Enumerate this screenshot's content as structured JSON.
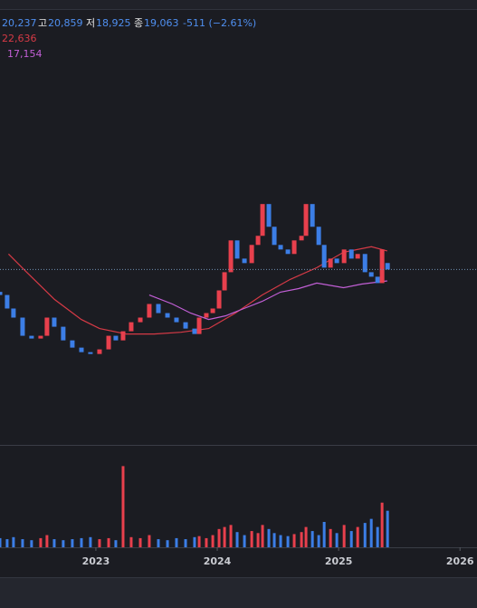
{
  "chart_data": {
    "type": "candlestick",
    "header": {
      "open": "20,237",
      "high_label": "고",
      "high": "20,859",
      "low_label": "저",
      "low": "18,925",
      "close_label": "종",
      "close": "19,063",
      "change": "-511 (−2.61%)"
    },
    "x": [
      2022.21,
      2022.269,
      2022.321,
      2022.396,
      2022.47,
      2022.545,
      2022.597,
      2022.657,
      2022.731,
      2022.806,
      2022.881,
      2022.955,
      2023.03,
      2023.105,
      2023.164,
      2023.224,
      2023.291,
      2023.366,
      2023.44,
      2023.515,
      2023.59,
      2023.664,
      2023.739,
      2023.813,
      2023.851,
      2023.91,
      2023.963,
      2024.015,
      2024.06,
      2024.112,
      2024.164,
      2024.224,
      2024.284,
      2024.336,
      2024.373,
      2024.425,
      2024.47,
      2024.522,
      2024.582,
      2024.634,
      2024.694,
      2024.731,
      2024.784,
      2024.836,
      2024.881,
      2024.933,
      2024.985,
      2025.045,
      2025.105,
      2025.157,
      2025.217,
      2025.269,
      2025.321,
      2025.358,
      2025.403
    ],
    "open": [
      15500,
      15060,
      13290,
      12220,
      10330,
      10070,
      10330,
      12220,
      11230,
      9900,
      9260,
      8880,
      8730,
      9110,
      10330,
      9900,
      10770,
      11710,
      12220,
      13860,
      12740,
      12220,
      11710,
      11040,
      10500,
      12220,
      12740,
      13290,
      15710,
      18590,
      24940,
      21080,
      20220,
      23920,
      26020,
      34900,
      28290,
      23920,
      22930,
      22000,
      24940,
      26020,
      34900,
      28290,
      23920,
      19390,
      21080,
      20220,
      22930,
      21080,
      22000,
      18590,
      17830,
      16810,
      20237
    ],
    "close": [
      15060,
      13290,
      12220,
      10330,
      10070,
      10330,
      12220,
      11230,
      9900,
      9260,
      8880,
      8730,
      9110,
      10330,
      9900,
      10770,
      11710,
      12220,
      13860,
      12740,
      12220,
      11710,
      11040,
      10500,
      12220,
      12740,
      13290,
      15710,
      18590,
      24940,
      21080,
      20220,
      23920,
      26020,
      34900,
      28290,
      23920,
      22930,
      22000,
      24940,
      26020,
      34900,
      28290,
      23920,
      19390,
      21080,
      20220,
      22930,
      21080,
      22000,
      18590,
      17830,
      16810,
      22930,
      19063
    ],
    "volume": [
      9,
      8,
      10,
      8,
      7,
      9,
      12,
      8,
      7,
      8,
      9,
      10,
      8,
      9,
      7,
      80,
      10,
      9,
      12,
      8,
      7,
      9,
      8,
      10,
      11,
      9,
      12,
      18,
      20,
      22,
      15,
      12,
      16,
      14,
      22,
      18,
      14,
      12,
      11,
      13,
      15,
      20,
      16,
      12,
      25,
      18,
      14,
      22,
      16,
      20,
      24,
      28,
      20,
      44,
      36
    ],
    "up_color": "#e8404d",
    "down_color": "#3c7ee6",
    "ma_lines": [
      {
        "color": "#d63a46",
        "label": "22,636",
        "x": [
          2022.28,
          2022.43,
          2022.66,
          2022.88,
          2023.03,
          2023.25,
          2023.48,
          2023.7,
          2023.93,
          2024.15,
          2024.37,
          2024.6,
          2024.82,
          2025.04,
          2025.27,
          2025.4
        ],
        "values": [
          22000,
          18590,
          14450,
          12010,
          11040,
          10500,
          10500,
          10670,
          11040,
          12740,
          15060,
          17390,
          19390,
          22360,
          23520,
          22636
        ]
      },
      {
        "color": "#c25fd6",
        "label": "17,154",
        "x": [
          2023.44,
          2023.63,
          2023.78,
          2023.93,
          2024.07,
          2024.22,
          2024.37,
          2024.52,
          2024.67,
          2024.82,
          2025.04,
          2025.19,
          2025.4
        ],
        "values": [
          15060,
          13860,
          12740,
          12010,
          12430,
          13290,
          14200,
          15460,
          15980,
          16810,
          16110,
          16660,
          17154
        ]
      }
    ],
    "log_scale": true,
    "xlim": [
      2022.21,
      2026.14
    ],
    "xticks": [
      2023,
      2024,
      2025,
      2026
    ],
    "ylim": [
      3800,
      230000
    ],
    "volume_ylim": [
      0,
      100
    ]
  }
}
